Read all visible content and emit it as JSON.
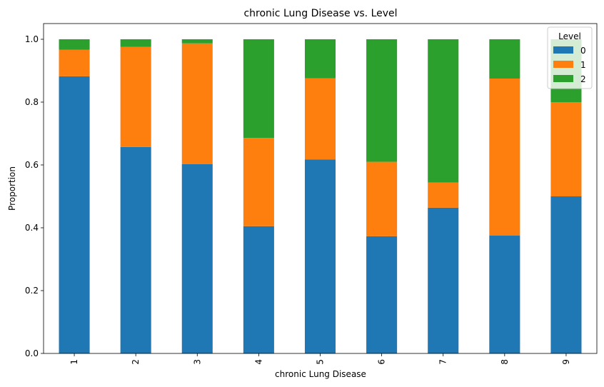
{
  "chart_data": {
    "type": "bar",
    "stacked": true,
    "title": "chronic Lung Disease vs. Level",
    "xlabel": "chronic Lung Disease",
    "ylabel": "Proportion",
    "ylim": [
      0,
      1.05
    ],
    "yticks": [
      "0.0",
      "0.2",
      "0.4",
      "0.6",
      "0.8",
      "1.0"
    ],
    "categories": [
      "1",
      "2",
      "3",
      "4",
      "5",
      "6",
      "7",
      "8",
      "9"
    ],
    "legend": {
      "title": "Level",
      "placement": "top-right"
    },
    "grid": false,
    "series": [
      {
        "name": "0",
        "color": "#1f77b4",
        "values": [
          0.882,
          0.657,
          0.603,
          0.405,
          0.617,
          0.373,
          0.464,
          0.375,
          0.5
        ]
      },
      {
        "name": "1",
        "color": "#ff7f0e",
        "values": [
          0.085,
          0.319,
          0.384,
          0.281,
          0.259,
          0.237,
          0.08,
          0.5,
          0.3
        ]
      },
      {
        "name": "2",
        "color": "#2ca02c",
        "values": [
          0.033,
          0.024,
          0.013,
          0.314,
          0.124,
          0.39,
          0.456,
          0.125,
          0.2
        ]
      }
    ]
  }
}
